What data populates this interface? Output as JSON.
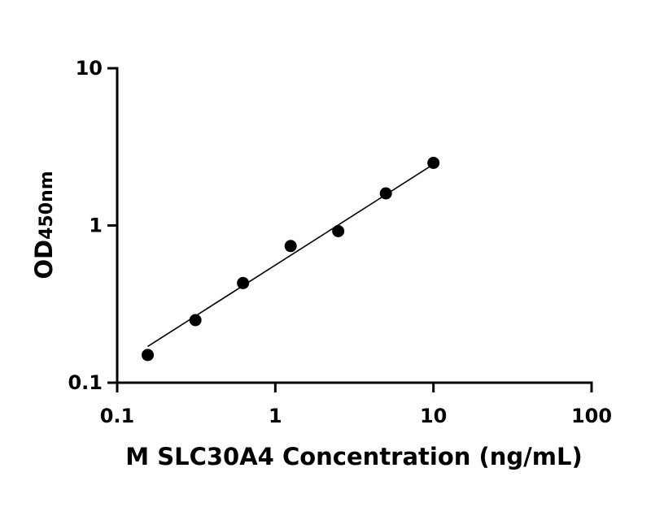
{
  "chart_data": {
    "type": "scatter",
    "xscale": "log",
    "yscale": "log",
    "xlim": [
      0.1,
      100
    ],
    "ylim": [
      0.1,
      10
    ],
    "xticks": [
      {
        "value": 0.1,
        "label": "0.1"
      },
      {
        "value": 1,
        "label": "1"
      },
      {
        "value": 10,
        "label": "10"
      },
      {
        "value": 100,
        "label": "100"
      }
    ],
    "yticks": [
      {
        "value": 0.1,
        "label": "0.1"
      },
      {
        "value": 1,
        "label": "1"
      },
      {
        "value": 10,
        "label": "10"
      }
    ],
    "xlabel": "M SLC30A4 Concentration (ng/mL)",
    "ylabel": {
      "main": "OD",
      "sub": "450nm"
    },
    "grid": false,
    "series": [
      {
        "x": [
          0.156,
          0.3125,
          0.625,
          1.25,
          2.5,
          5,
          10
        ],
        "y": [
          0.15,
          0.25,
          0.43,
          0.74,
          0.92,
          1.6,
          2.5
        ]
      }
    ],
    "fit": {
      "type": "line",
      "from": {
        "x": 0.156,
        "y": 0.17
      },
      "to": {
        "x": 10,
        "y": 2.45
      }
    }
  }
}
